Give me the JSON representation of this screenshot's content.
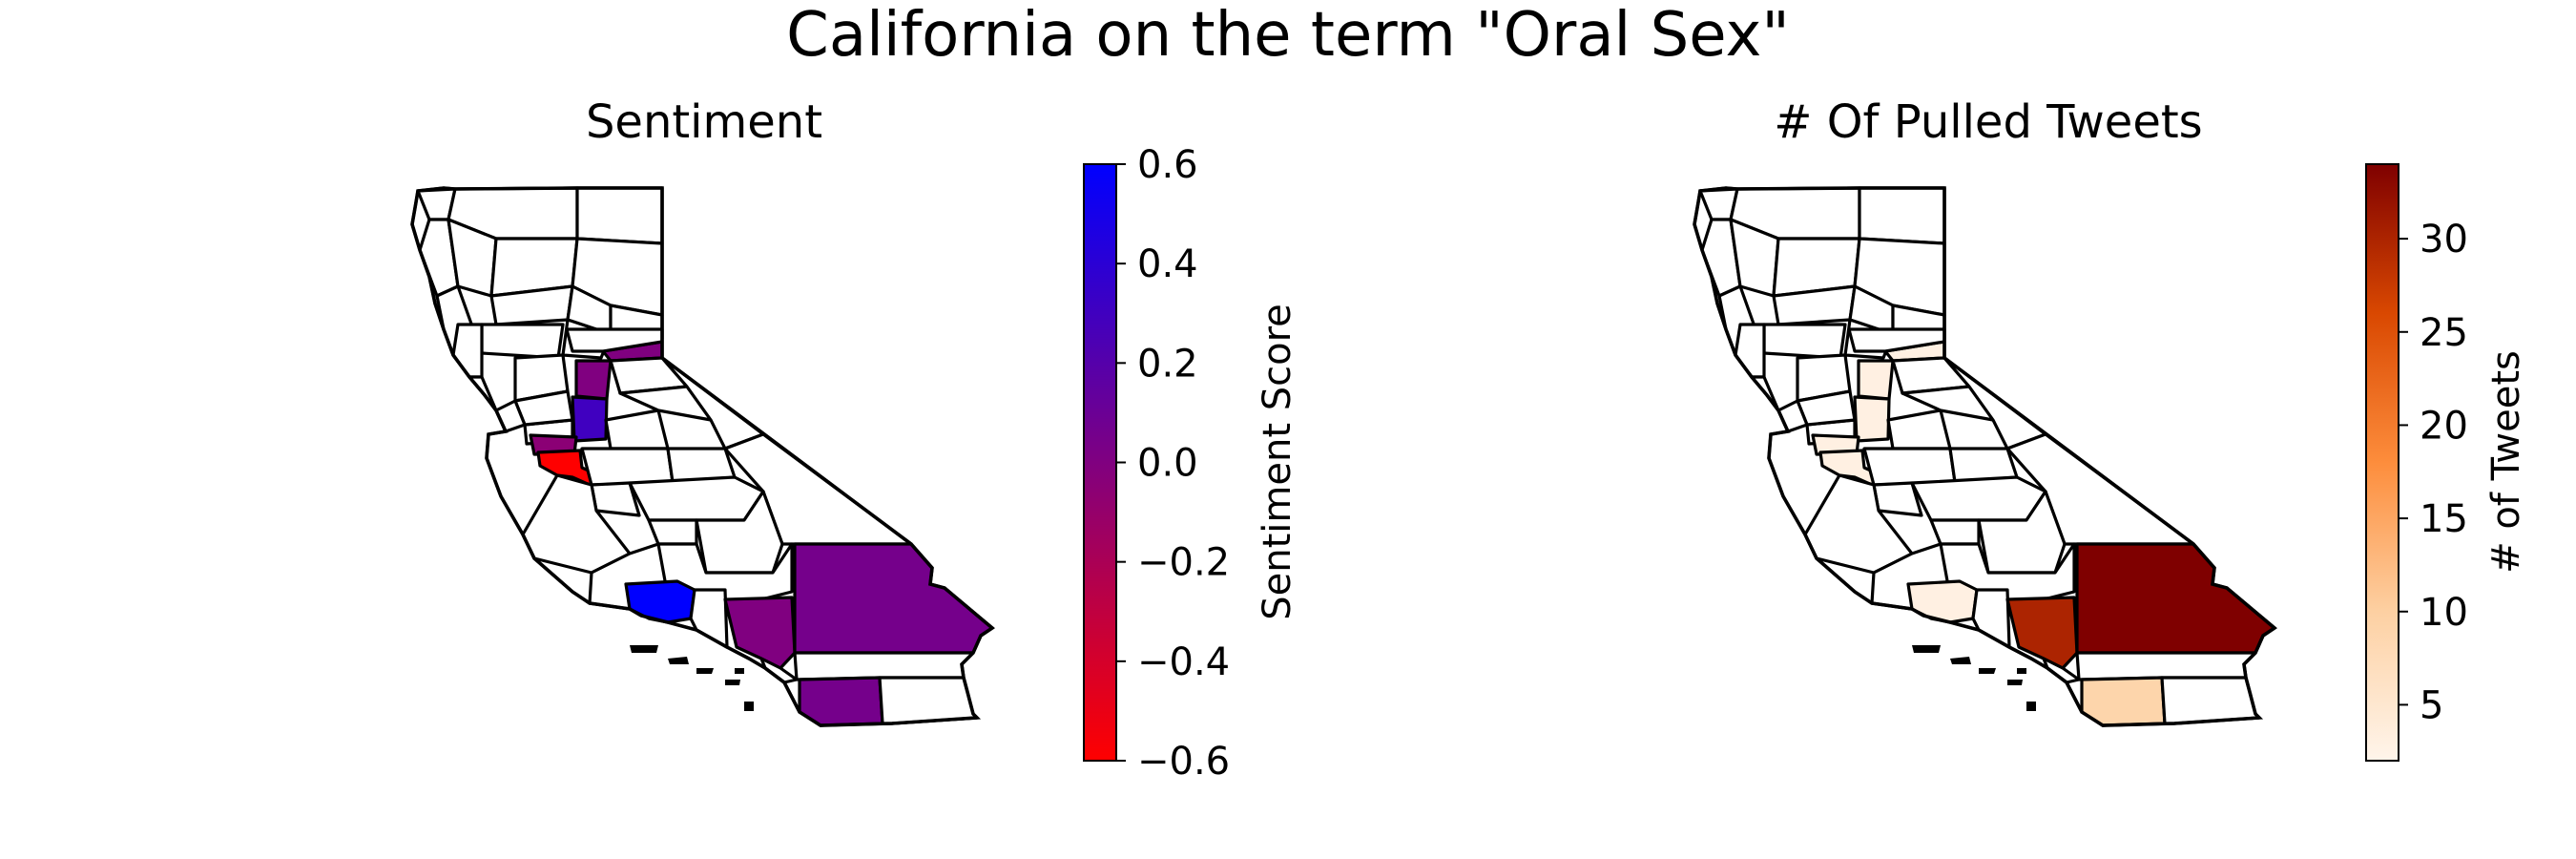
{
  "figure": {
    "title": "California on the term \"Oral Sex\""
  },
  "maps": [
    {
      "id": "sentiment",
      "subtitle": "Sentiment",
      "colorbar": {
        "label": "Sentiment Score",
        "colormap": [
          "#ff0000",
          "#800080",
          "#0000ff"
        ],
        "range": [
          -0.6,
          0.6
        ],
        "ticks": [
          "0.6",
          "0.4",
          "0.2",
          "0.0",
          "−0.2",
          "−0.4",
          "−0.6"
        ]
      },
      "regions": [
        {
          "name": "Los Angeles",
          "value": 0.0
        },
        {
          "name": "San Bernardino",
          "value": 0.05
        },
        {
          "name": "San Diego",
          "value": 0.05
        },
        {
          "name": "Santa Barbara",
          "value": 0.6
        },
        {
          "name": "Santa Clara",
          "value": -0.6
        },
        {
          "name": "Alameda",
          "value": -0.05
        },
        {
          "name": "San Joaquin",
          "value": 0.3
        },
        {
          "name": "Sacramento",
          "value": 0.0
        },
        {
          "name": "Placer",
          "value": 0.0
        }
      ]
    },
    {
      "id": "tweets",
      "subtitle": "# Of Pulled Tweets",
      "colorbar": {
        "label": "# of Tweets",
        "colormap": [
          "#fff5eb",
          "#fdd0a2",
          "#fd8d3c",
          "#d94801",
          "#7f0000"
        ],
        "range": [
          2,
          34
        ],
        "ticks": [
          "30",
          "25",
          "20",
          "15",
          "10",
          "5"
        ]
      },
      "regions": [
        {
          "name": "San Bernardino",
          "value": 34
        },
        {
          "name": "Los Angeles",
          "value": 30
        },
        {
          "name": "San Diego",
          "value": 9
        },
        {
          "name": "Santa Barbara",
          "value": 3
        },
        {
          "name": "Santa Clara",
          "value": 3
        },
        {
          "name": "Alameda",
          "value": 3
        },
        {
          "name": "San Joaquin",
          "value": 3
        },
        {
          "name": "Sacramento",
          "value": 3
        },
        {
          "name": "Placer",
          "value": 3
        }
      ]
    }
  ]
}
